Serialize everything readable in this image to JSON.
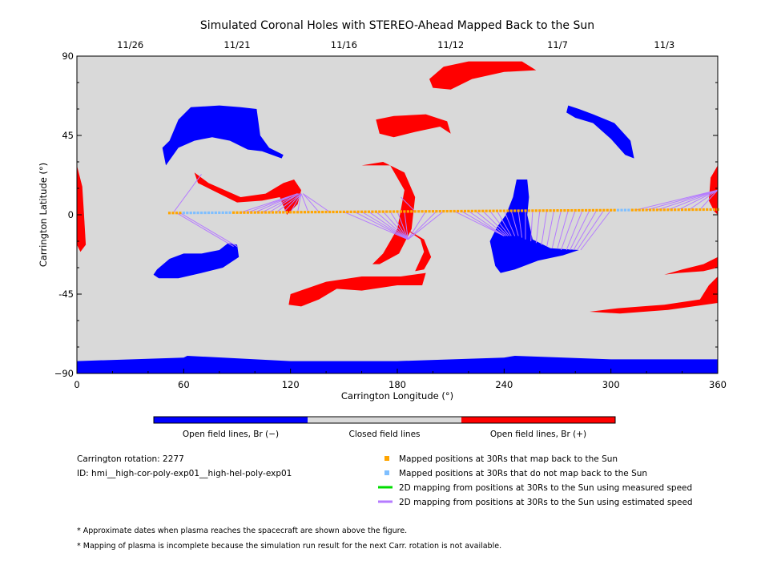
{
  "chart_data": {
    "type": "map",
    "title": "Simulated Coronal Holes with STEREO-Ahead Mapped Back to the Sun",
    "xlabel": "Carrington Longitude (°)",
    "ylabel": "Carrington Latitude (°)",
    "xlim": [
      0,
      360
    ],
    "ylim": [
      -90,
      90
    ],
    "x_ticks": [
      0,
      60,
      120,
      180,
      240,
      300,
      360
    ],
    "y_ticks": [
      90,
      45,
      0,
      -45,
      -90
    ],
    "x_tick_labels": [
      "0",
      "60",
      "120",
      "180",
      "240",
      "300",
      "360"
    ],
    "y_tick_labels": [
      "90",
      "45",
      "0",
      "-45",
      "−90"
    ],
    "top_axis": {
      "ticks": [
        {
          "label": "11/26",
          "lon": 30
        },
        {
          "label": "11/21",
          "lon": 90
        },
        {
          "label": "11/16",
          "lon": 150
        },
        {
          "label": "11/12",
          "lon": 210
        },
        {
          "label": "11/7",
          "lon": 270
        },
        {
          "label": "11/3",
          "lon": 330
        }
      ]
    },
    "colorbar": {
      "segments": [
        {
          "label": "Open field lines, Br (−)",
          "color": "#0000ff"
        },
        {
          "label": "Closed field lines",
          "color": "#d9d9d9"
        },
        {
          "label": "Open field lines, Br (+)",
          "color": "#ff0000"
        }
      ]
    },
    "colors": {
      "background": "#d9d9d9",
      "negative": "#0000ff",
      "positive": "#ff0000",
      "mapped": "#ffa500",
      "unmapped": "#7fbfff",
      "measured_speed": "#00dd00",
      "estimated_speed": "#b57bff"
    },
    "trajectory": {
      "lon_start": 52,
      "lon_end": 360,
      "lat_start": 1,
      "lat_end": 3,
      "unmapped_ranges": [
        [
          60,
          86
        ],
        [
          304,
          310
        ]
      ]
    },
    "coronal_holes": [
      {
        "polarity": "negative",
        "points": [
          [
            0,
            -83
          ],
          [
            60,
            -81
          ],
          [
            62,
            -80
          ],
          [
            120,
            -83
          ],
          [
            180,
            -83
          ],
          [
            240,
            -81
          ],
          [
            246,
            -80
          ],
          [
            300,
            -82
          ],
          [
            360,
            -82
          ],
          [
            360,
            -90
          ],
          [
            0,
            -90
          ]
        ]
      },
      {
        "polarity": "negative",
        "points": [
          [
            52,
            42
          ],
          [
            57,
            54
          ],
          [
            64,
            61
          ],
          [
            80,
            62
          ],
          [
            92,
            61
          ],
          [
            101,
            60
          ],
          [
            103,
            45
          ],
          [
            108,
            38
          ],
          [
            116,
            34
          ],
          [
            115,
            32
          ],
          [
            104,
            36
          ],
          [
            96,
            37
          ],
          [
            86,
            42
          ],
          [
            76,
            44
          ],
          [
            66,
            42
          ],
          [
            57,
            38
          ],
          [
            50,
            28
          ],
          [
            48,
            38
          ]
        ]
      },
      {
        "polarity": "negative",
        "points": [
          [
            45,
            -31
          ],
          [
            52,
            -25
          ],
          [
            60,
            -22
          ],
          [
            70,
            -22
          ],
          [
            80,
            -20
          ],
          [
            85,
            -16
          ],
          [
            90,
            -17
          ],
          [
            91,
            -24
          ],
          [
            82,
            -30
          ],
          [
            70,
            -33
          ],
          [
            57,
            -36
          ],
          [
            46,
            -36
          ],
          [
            43,
            -34
          ]
        ]
      },
      {
        "polarity": "negative",
        "points": [
          [
            232,
            -15
          ],
          [
            236,
            -7
          ],
          [
            241,
            0
          ],
          [
            245,
            10
          ],
          [
            247,
            20
          ],
          [
            253,
            20
          ],
          [
            254,
            10
          ],
          [
            253,
            0
          ],
          [
            256,
            -14
          ],
          [
            266,
            -19
          ],
          [
            282,
            -20
          ],
          [
            273,
            -23
          ],
          [
            259,
            -26
          ],
          [
            246,
            -31
          ],
          [
            238,
            -33
          ],
          [
            235,
            -29
          ]
        ]
      },
      {
        "polarity": "negative",
        "points": [
          [
            276,
            62
          ],
          [
            282,
            60
          ],
          [
            290,
            57
          ],
          [
            302,
            52
          ],
          [
            311,
            42
          ],
          [
            313,
            32
          ],
          [
            308,
            34
          ],
          [
            300,
            43
          ],
          [
            290,
            52
          ],
          [
            280,
            55
          ],
          [
            275,
            58
          ]
        ]
      },
      {
        "polarity": "positive",
        "points": [
          [
            198,
            77
          ],
          [
            206,
            84
          ],
          [
            220,
            87
          ],
          [
            250,
            87
          ],
          [
            258,
            82
          ],
          [
            240,
            81
          ],
          [
            222,
            77
          ],
          [
            210,
            71
          ],
          [
            200,
            72
          ]
        ]
      },
      {
        "polarity": "positive",
        "points": [
          [
            168,
            54
          ],
          [
            178,
            56
          ],
          [
            196,
            57
          ],
          [
            208,
            53
          ],
          [
            210,
            46
          ],
          [
            204,
            50
          ],
          [
            190,
            47
          ],
          [
            178,
            44
          ],
          [
            170,
            46
          ]
        ]
      },
      {
        "polarity": "positive",
        "points": [
          [
            0,
            28
          ],
          [
            3,
            16
          ],
          [
            4,
            0
          ],
          [
            5,
            -17
          ],
          [
            2,
            -21
          ],
          [
            0,
            -17
          ]
        ]
      },
      {
        "polarity": "positive",
        "points": [
          [
            360,
            28
          ],
          [
            356,
            21
          ],
          [
            355,
            8
          ],
          [
            358,
            2
          ],
          [
            360,
            0
          ]
        ]
      },
      {
        "polarity": "positive",
        "points": [
          [
            120,
            -45
          ],
          [
            140,
            -38
          ],
          [
            160,
            -35
          ],
          [
            182,
            -35
          ],
          [
            196,
            -33
          ],
          [
            194,
            -40
          ],
          [
            180,
            -40
          ],
          [
            160,
            -43
          ],
          [
            146,
            -42
          ],
          [
            136,
            -48
          ],
          [
            126,
            -52
          ],
          [
            119,
            -51
          ]
        ]
      },
      {
        "polarity": "positive",
        "points": [
          [
            160,
            28
          ],
          [
            176,
            28
          ],
          [
            184,
            14
          ],
          [
            180,
            -8
          ],
          [
            172,
            -22
          ],
          [
            166,
            -28
          ],
          [
            170,
            -28
          ],
          [
            181,
            -22
          ],
          [
            188,
            -8
          ],
          [
            190,
            10
          ],
          [
            184,
            24
          ],
          [
            172,
            30
          ]
        ]
      },
      {
        "polarity": "positive",
        "points": [
          [
            185,
            -8
          ],
          [
            195,
            -14
          ],
          [
            199,
            -24
          ],
          [
            195,
            -31
          ],
          [
            190,
            -32
          ],
          [
            195,
            -21
          ],
          [
            193,
            -14
          ],
          [
            186,
            -9
          ]
        ]
      },
      {
        "polarity": "positive",
        "points": [
          [
            66,
            24
          ],
          [
            74,
            18
          ],
          [
            92,
            10
          ],
          [
            106,
            12
          ],
          [
            116,
            18
          ],
          [
            122,
            20
          ],
          [
            126,
            14
          ],
          [
            124,
            6
          ],
          [
            118,
            0
          ],
          [
            114,
            10
          ],
          [
            104,
            8
          ],
          [
            90,
            7
          ],
          [
            76,
            14
          ],
          [
            68,
            18
          ]
        ]
      },
      {
        "polarity": "positive",
        "points": [
          [
            288,
            -55
          ],
          [
            304,
            -53
          ],
          [
            330,
            -51
          ],
          [
            350,
            -48
          ],
          [
            355,
            -40
          ],
          [
            360,
            -35
          ],
          [
            360,
            -50
          ],
          [
            332,
            -54
          ],
          [
            305,
            -56
          ]
        ]
      },
      {
        "polarity": "positive",
        "points": [
          [
            360,
            -24
          ],
          [
            352,
            -28
          ],
          [
            340,
            -31
          ],
          [
            330,
            -34
          ],
          [
            338,
            -33
          ],
          [
            352,
            -32
          ],
          [
            360,
            -30
          ]
        ]
      }
    ],
    "mapping_lines": [
      {
        "from": 54,
        "to": [
          70,
          23
        ]
      },
      {
        "from": 56,
        "to": [
          88,
          -18
        ]
      },
      {
        "from": 58,
        "to": [
          90,
          -18
        ]
      },
      {
        "from": 92,
        "to": [
          124,
          12
        ]
      },
      {
        "from": 96,
        "to": [
          124,
          12
        ]
      },
      {
        "from": 100,
        "to": [
          124,
          12
        ]
      },
      {
        "from": 104,
        "to": [
          125,
          12
        ]
      },
      {
        "from": 108,
        "to": [
          125,
          12
        ]
      },
      {
        "from": 112,
        "to": [
          126,
          12
        ]
      },
      {
        "from": 116,
        "to": [
          126,
          12
        ]
      },
      {
        "from": 120,
        "to": [
          126,
          12
        ]
      },
      {
        "from": 124,
        "to": [
          126,
          12
        ]
      },
      {
        "from": 130,
        "to": [
          126,
          12
        ]
      },
      {
        "from": 136,
        "to": [
          127,
          12
        ]
      },
      {
        "from": 142,
        "to": [
          127,
          12
        ]
      },
      {
        "from": 150,
        "to": [
          186,
          -14
        ]
      },
      {
        "from": 156,
        "to": [
          186,
          -14
        ]
      },
      {
        "from": 160,
        "to": [
          186,
          -14
        ]
      },
      {
        "from": 164,
        "to": [
          186,
          -14
        ]
      },
      {
        "from": 168,
        "to": [
          186,
          -14
        ]
      },
      {
        "from": 172,
        "to": [
          186,
          -14
        ]
      },
      {
        "from": 176,
        "to": [
          186,
          -14
        ]
      },
      {
        "from": 180,
        "to": [
          186,
          -14
        ]
      },
      {
        "from": 184,
        "to": [
          186,
          -14
        ]
      },
      {
        "from": 190,
        "to": [
          182,
          10
        ]
      },
      {
        "from": 196,
        "to": [
          186,
          -14
        ]
      },
      {
        "from": 202,
        "to": [
          186,
          -14
        ]
      },
      {
        "from": 206,
        "to": [
          186,
          -14
        ]
      },
      {
        "from": 212,
        "to": [
          240,
          -12
        ]
      },
      {
        "from": 216,
        "to": [
          240,
          -12
        ]
      },
      {
        "from": 220,
        "to": [
          240,
          -12
        ]
      },
      {
        "from": 224,
        "to": [
          241,
          -12
        ]
      },
      {
        "from": 228,
        "to": [
          242,
          -12
        ]
      },
      {
        "from": 232,
        "to": [
          243,
          -12
        ]
      },
      {
        "from": 236,
        "to": [
          244,
          -12
        ]
      },
      {
        "from": 240,
        "to": [
          246,
          -12
        ]
      },
      {
        "from": 244,
        "to": [
          248,
          -12
        ]
      },
      {
        "from": 248,
        "to": [
          250,
          -13
        ]
      },
      {
        "from": 252,
        "to": [
          252,
          -14
        ]
      },
      {
        "from": 256,
        "to": [
          255,
          -15
        ]
      },
      {
        "from": 260,
        "to": [
          258,
          -16
        ]
      },
      {
        "from": 264,
        "to": [
          261,
          -17
        ]
      },
      {
        "from": 268,
        "to": [
          264,
          -18
        ]
      },
      {
        "from": 272,
        "to": [
          267,
          -19
        ]
      },
      {
        "from": 276,
        "to": [
          270,
          -19
        ]
      },
      {
        "from": 280,
        "to": [
          272,
          -20
        ]
      },
      {
        "from": 284,
        "to": [
          275,
          -20
        ]
      },
      {
        "from": 288,
        "to": [
          277,
          -20
        ]
      },
      {
        "from": 292,
        "to": [
          279,
          -20
        ]
      },
      {
        "from": 296,
        "to": [
          281,
          -20
        ]
      },
      {
        "from": 300,
        "to": [
          283,
          -20
        ]
      },
      {
        "from": 314,
        "to": [
          360,
          14
        ]
      },
      {
        "from": 320,
        "to": [
          360,
          14
        ]
      },
      {
        "from": 326,
        "to": [
          360,
          14
        ]
      },
      {
        "from": 332,
        "to": [
          360,
          14
        ]
      },
      {
        "from": 338,
        "to": [
          360,
          14
        ]
      },
      {
        "from": 344,
        "to": [
          360,
          14
        ]
      },
      {
        "from": 350,
        "to": [
          360,
          14
        ]
      }
    ]
  },
  "info": {
    "rotation": "Carrington rotation: 2277",
    "id": "ID: hmi__high-cor-poly-exp01__high-hel-poly-exp01"
  },
  "legend": [
    {
      "label": "Mapped positions at 30Rs that map back to the Sun",
      "kind": "square",
      "color": "#ffa500"
    },
    {
      "label": "Mapped positions at 30Rs that do not map back to the Sun",
      "kind": "square",
      "color": "#7fbfff"
    },
    {
      "label": "2D mapping from positions at 30Rs to the Sun using measured speed",
      "kind": "line",
      "color": "#00dd00"
    },
    {
      "label": "2D mapping from positions at 30Rs to the Sun using estimated speed",
      "kind": "line",
      "color": "#b57bff"
    }
  ],
  "notes": [
    "* Approximate dates when plasma reaches the spacecraft are shown above the figure.",
    "* Mapping of plasma is incomplete because the simulation run result for the next Carr. rotation is not available."
  ]
}
